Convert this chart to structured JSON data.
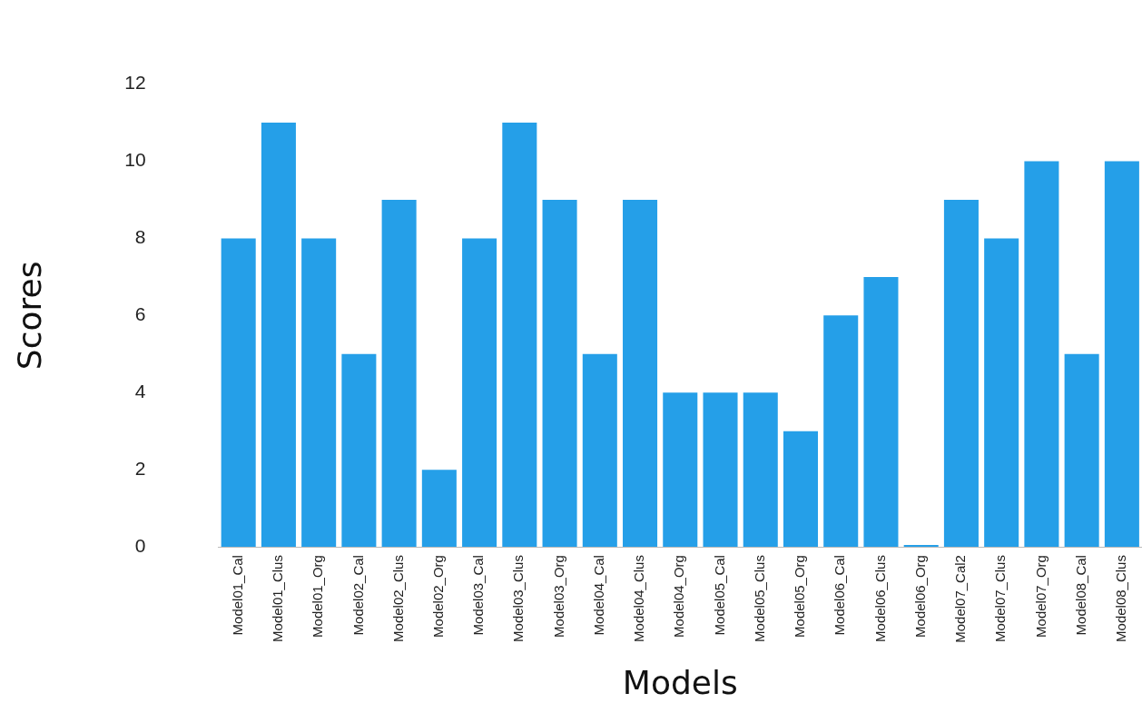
{
  "chart_data": {
    "type": "bar",
    "xlabel": "Models",
    "ylabel": "Scores",
    "categories": [
      "Model01_Cal",
      "Model01_Clus",
      "Model01_Org",
      "Model02_Cal",
      "Model02_Clus",
      "Model02_Org",
      "Model03_Cal",
      "Model03_Clus",
      "Model03_Org",
      "Model04_Cal",
      "Model04_Clus",
      "Model04_Org",
      "Model05_Cal",
      "Model05_Clus",
      "Model05_Org",
      "Model06_Cal",
      "Model06_Clus",
      "Model06_Org",
      "Model07_Cal2",
      "Model07_Clus",
      "Model07_Org",
      "Model08_Cal",
      "Model08_Clus"
    ],
    "values": [
      8,
      11,
      8,
      5,
      9,
      2,
      8,
      11,
      9,
      5,
      9,
      4,
      4,
      4,
      3,
      6,
      7,
      0,
      9,
      8,
      10,
      5,
      10
    ],
    "color": "#259fe8",
    "ylim": [
      0,
      12
    ],
    "yticks": [
      0,
      2,
      4,
      6,
      8,
      10,
      12
    ],
    "grid": false,
    "legend": false
  }
}
